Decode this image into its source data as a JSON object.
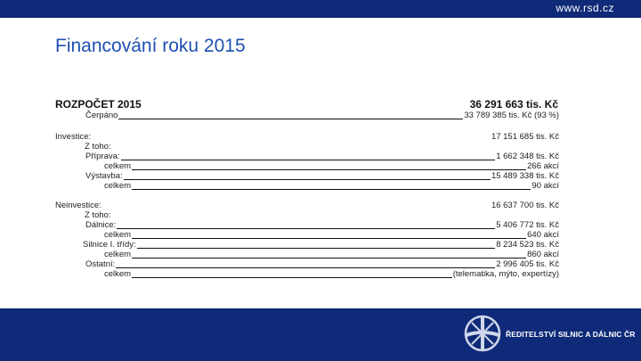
{
  "header": {
    "site_url": "www.rsd.cz"
  },
  "title": "Financování roku 2015",
  "budget": {
    "label": "ROZPOČET 2015",
    "value": "36 291 663 tis. Kč"
  },
  "rows": {
    "cerpano": {
      "label": "Čerpáno",
      "value": "33 789 385 tis. Kč (93 %)"
    },
    "investice": {
      "label": "Investice:",
      "value": "17 151 685 tis. Kč"
    },
    "investice_ztoho": {
      "label": "Z toho:"
    },
    "priprava": {
      "label": "Příprava:",
      "value": "1 662 348 tis. Kč"
    },
    "priprava_celkem": {
      "label": "celkem",
      "value": "266 akcí"
    },
    "vystavba": {
      "label": "Výstavba:",
      "value": "15 489 338 tis. Kč"
    },
    "vystavba_celkem": {
      "label": "celkem",
      "value": "90 akcí"
    },
    "neinvestice": {
      "label": "Neinvestice:",
      "value": "16 637 700 tis. Kč"
    },
    "neinvestice_ztoho": {
      "label": "Z toho:"
    },
    "dalnice": {
      "label": "Dálnice:",
      "value": "5 406 772 tis. Kč"
    },
    "dalnice_celkem": {
      "label": "celkem",
      "value": "640 akcí"
    },
    "silnice": {
      "label": "Silnice I. třídy:",
      "value": "8 234 523 tis. Kč"
    },
    "silnice_celkem": {
      "label": "celkem",
      "value": "860 akcí"
    },
    "ostatni": {
      "label": "Ostatní:",
      "value": "2 996 405 tis. Kč"
    },
    "ostatni_celkem": {
      "label": "celkem",
      "value": "(telematika, mýto, expertízy)"
    }
  },
  "footer": {
    "org_name": "ŘEDITELSTVÍ SILNIC A DÁLNIC ČR"
  },
  "colors": {
    "brand_blue": "#0f2a78",
    "title_blue": "#1f4fb3"
  }
}
